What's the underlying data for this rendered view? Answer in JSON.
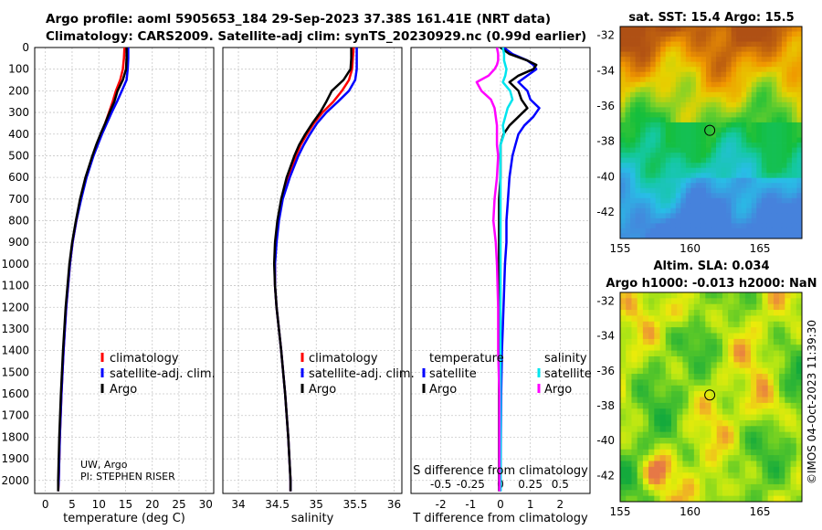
{
  "header": {
    "line1": "Argo profile: aoml 5905653_184 29-Sep-2023 37.38S 161.41E (NRT data)",
    "line2": "Climatology: CARS2009. Satellite-adj clim: synTS_20230929.nc (0.99d earlier)"
  },
  "credits": {
    "line1": "UW, Argo",
    "line2": "PI: STEPHEN RISER"
  },
  "footer": {
    "timestamp": "©IMOS 04-Oct-2023 11:39:30"
  },
  "colors": {
    "climatology": "#ff0000",
    "satellite": "#0000ff",
    "argo": "#000000",
    "t_argo": "#000000",
    "t_sat": "#0000ff",
    "s_argo": "#ff00ff",
    "s_sat": "#00e5ee"
  },
  "chart_data": [
    {
      "type": "line",
      "panel": "temperature",
      "xlabel": "temperature (deg C)",
      "xlim": [
        -2,
        31.5
      ],
      "xticks": [
        0,
        5,
        10,
        15,
        20,
        25,
        30
      ],
      "ylim": [
        0,
        2060
      ],
      "yticks": [
        0,
        100,
        200,
        300,
        400,
        500,
        600,
        700,
        800,
        900,
        1000,
        1100,
        1200,
        1300,
        1400,
        1500,
        1600,
        1700,
        1800,
        1900,
        2000
      ],
      "legend": [
        "climatology",
        "satellite-adj. clim.",
        "Argo"
      ],
      "depth": [
        0,
        50,
        100,
        150,
        200,
        250,
        300,
        350,
        400,
        450,
        500,
        600,
        700,
        800,
        900,
        1000,
        1200,
        1400,
        1600,
        1800,
        2000,
        2050
      ],
      "series": [
        {
          "name": "climatology",
          "values": [
            14.8,
            14.7,
            14.5,
            14.0,
            13.2,
            12.6,
            11.9,
            11.2,
            10.4,
            9.6,
            8.9,
            7.6,
            6.6,
            5.8,
            5.1,
            4.6,
            3.9,
            3.4,
            3.0,
            2.7,
            2.5,
            2.4
          ]
        },
        {
          "name": "satellite-adj. clim.",
          "values": [
            15.5,
            15.5,
            15.4,
            15.2,
            14.3,
            13.4,
            12.4,
            11.5,
            10.6,
            9.8,
            9.0,
            7.7,
            6.7,
            5.8,
            5.1,
            4.6,
            3.9,
            3.4,
            3.0,
            2.7,
            2.5,
            2.4
          ]
        },
        {
          "name": "Argo",
          "values": [
            15.2,
            15.2,
            15.1,
            14.5,
            13.5,
            12.9,
            12.0,
            11.2,
            10.3,
            9.5,
            8.8,
            7.5,
            6.5,
            5.7,
            5.0,
            4.5,
            3.8,
            3.3,
            2.9,
            2.6,
            2.4,
            2.4
          ]
        }
      ]
    },
    {
      "type": "line",
      "panel": "salinity",
      "xlabel": "salinity",
      "xlim": [
        33.8,
        36.1
      ],
      "xticks": [
        34,
        34.5,
        35,
        35.5,
        36
      ],
      "ylim": [
        0,
        2060
      ],
      "legend": [
        "climatology",
        "satellite-adj. clim.",
        "Argo"
      ],
      "depth": [
        0,
        50,
        100,
        150,
        200,
        250,
        300,
        350,
        400,
        450,
        500,
        600,
        700,
        800,
        900,
        1000,
        1100,
        1200,
        1400,
        1600,
        1800,
        2000,
        2050
      ],
      "series": [
        {
          "name": "climatology",
          "values": [
            35.48,
            35.47,
            35.46,
            35.42,
            35.33,
            35.22,
            35.08,
            34.97,
            34.88,
            34.8,
            34.74,
            34.64,
            34.56,
            34.51,
            34.48,
            34.47,
            34.47,
            34.49,
            34.55,
            34.6,
            34.64,
            34.67,
            34.67
          ]
        },
        {
          "name": "satellite-adj. clim.",
          "values": [
            35.52,
            35.52,
            35.52,
            35.5,
            35.42,
            35.28,
            35.13,
            35.01,
            34.92,
            34.84,
            34.77,
            34.66,
            34.57,
            34.52,
            34.49,
            34.47,
            34.47,
            34.49,
            34.55,
            34.6,
            34.64,
            34.67,
            34.67
          ]
        },
        {
          "name": "Argo",
          "values": [
            35.45,
            35.45,
            35.44,
            35.35,
            35.2,
            35.13,
            35.05,
            34.95,
            34.86,
            34.78,
            34.72,
            34.62,
            34.55,
            34.5,
            34.47,
            34.46,
            34.47,
            34.49,
            34.55,
            34.6,
            34.64,
            34.67,
            34.67
          ]
        }
      ]
    },
    {
      "type": "line",
      "panel": "difference",
      "xlabel": "T difference from climatology",
      "x2label": "S difference from climatology",
      "xlim": [
        -3,
        3
      ],
      "xticks": [
        -2,
        -1,
        0,
        1,
        2
      ],
      "x2ticks": [
        "-0.5",
        "-0.25",
        "0",
        "0.25",
        "0.5"
      ],
      "legend_titles": [
        "temperature",
        "salinity"
      ],
      "legend": [
        "satellite",
        "Argo",
        "satellite",
        "Argo"
      ],
      "depth": [
        0,
        30,
        60,
        80,
        100,
        130,
        160,
        200,
        240,
        280,
        320,
        360,
        400,
        450,
        500,
        600,
        700,
        800,
        900,
        1000,
        1200,
        1400,
        1600,
        1800,
        2000,
        2050
      ],
      "series": [
        {
          "name": "T satellite",
          "values": [
            0.1,
            0.4,
            0.9,
            1.1,
            1.2,
            0.9,
            0.6,
            0.9,
            1.0,
            1.3,
            1.1,
            0.8,
            0.6,
            0.5,
            0.4,
            0.3,
            0.25,
            0.2,
            0.2,
            0.15,
            0.1,
            0.05,
            0.02,
            0.01,
            0.0,
            0.0
          ]
        },
        {
          "name": "T Argo",
          "values": [
            0.0,
            0.3,
            0.9,
            1.2,
            1.1,
            0.6,
            0.3,
            0.6,
            0.7,
            0.9,
            0.6,
            0.3,
            0.1,
            0.0,
            0.0,
            0.0,
            -0.05,
            -0.05,
            -0.05,
            -0.05,
            -0.05,
            -0.05,
            -0.05,
            -0.05,
            -0.05,
            -0.05
          ]
        },
        {
          "name": "S satellite",
          "values": [
            0.02,
            0.03,
            0.03,
            0.04,
            0.05,
            0.04,
            0.02,
            0.08,
            0.1,
            0.06,
            0.04,
            0.02,
            0.03,
            0.0,
            0.0,
            0.0,
            0.0,
            0.0,
            0.0,
            0.0,
            0.0,
            0.0,
            0.0,
            0.0,
            0.0,
            0.0
          ]
        },
        {
          "name": "S Argo",
          "values": [
            -0.03,
            -0.02,
            -0.02,
            -0.03,
            -0.05,
            -0.1,
            -0.2,
            -0.16,
            -0.08,
            -0.05,
            -0.04,
            -0.03,
            -0.03,
            -0.03,
            -0.02,
            -0.03,
            -0.05,
            -0.06,
            -0.04,
            -0.03,
            -0.02,
            -0.02,
            -0.01,
            -0.01,
            -0.01,
            -0.01
          ]
        }
      ]
    },
    {
      "type": "heatmap",
      "panel": "sst-map",
      "title": "sat. SST: 15.4 Argo: 15.5",
      "xlim": [
        155,
        168
      ],
      "ylim": [
        -43.5,
        -31.5
      ],
      "xticks": [
        155,
        160,
        165
      ],
      "yticks": [
        -32,
        -34,
        -36,
        -38,
        -40,
        -42
      ],
      "marker": {
        "lon": 161.41,
        "lat": -37.38
      }
    },
    {
      "type": "heatmap",
      "panel": "sla-map",
      "title": "Altim. SLA: 0.034",
      "subtitle": "Argo h1000: -0.013 h2000: NaN",
      "xlim": [
        155,
        168
      ],
      "ylim": [
        -43.5,
        -31.5
      ],
      "xticks": [
        155,
        160,
        165
      ],
      "yticks": [
        -32,
        -34,
        -36,
        -38,
        -40,
        -42
      ],
      "marker": {
        "lon": 161.41,
        "lat": -37.38
      }
    }
  ]
}
